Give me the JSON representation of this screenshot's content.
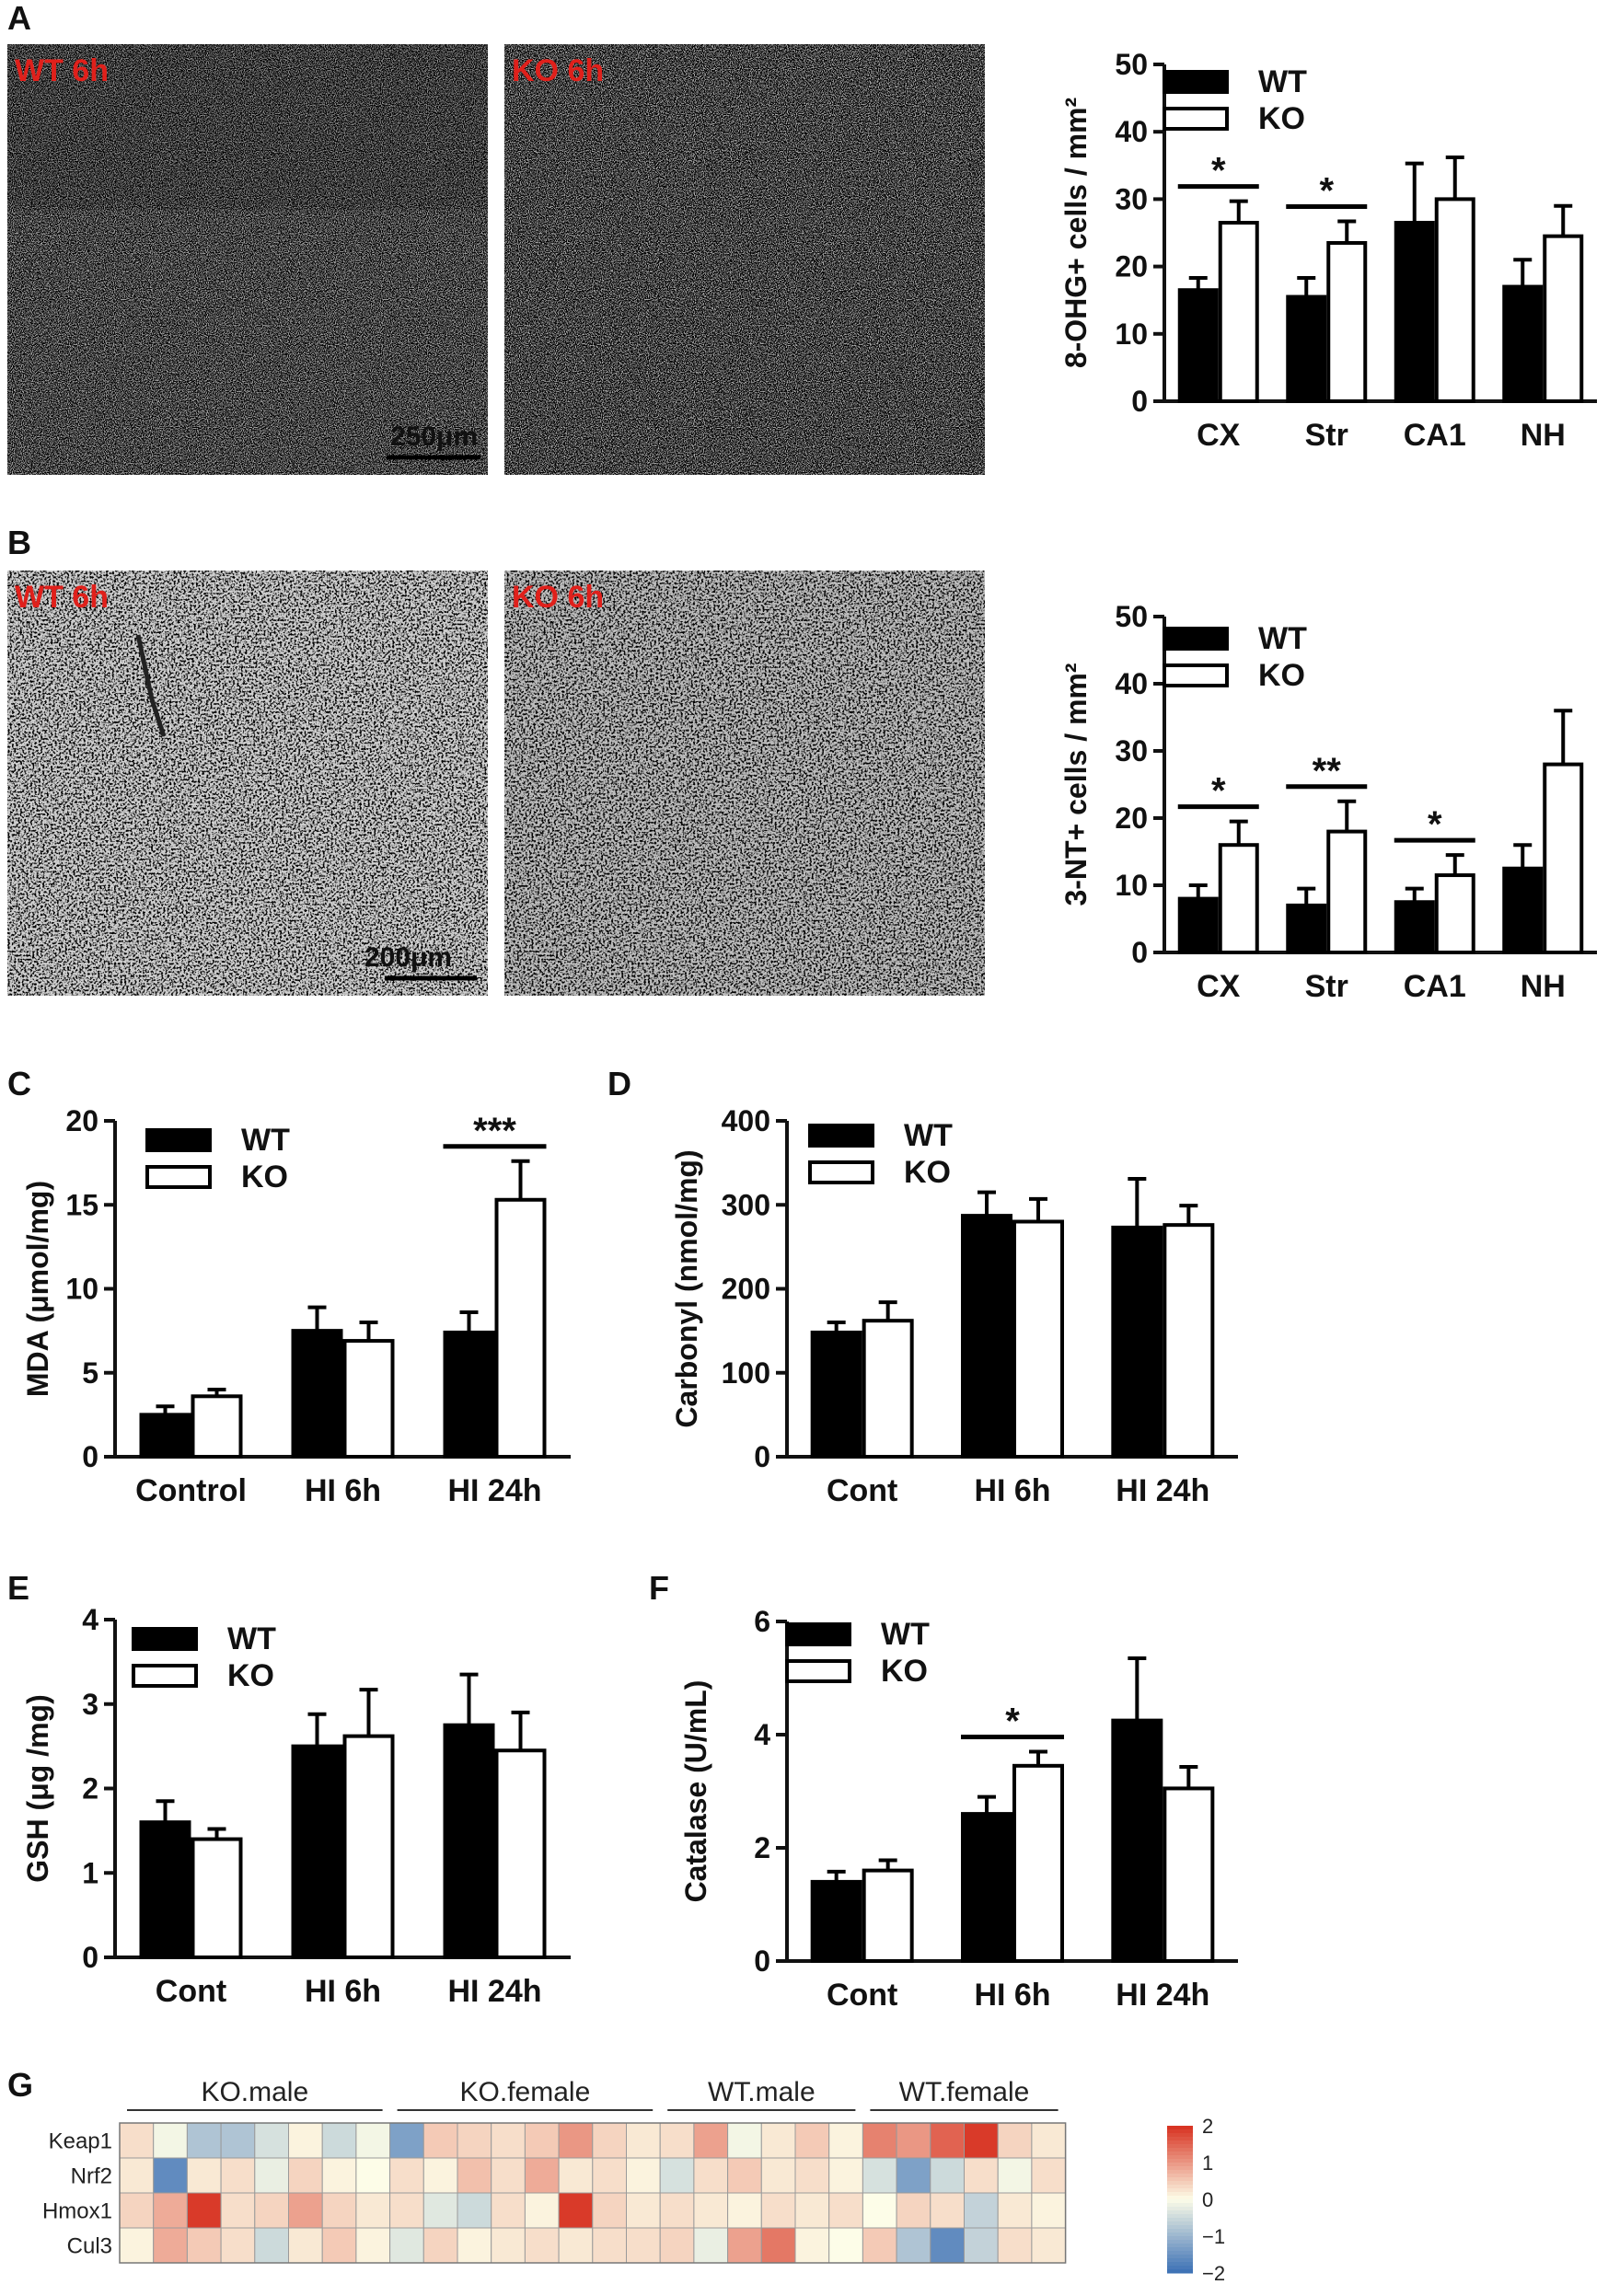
{
  "panels": {
    "A": {
      "letter": "A",
      "wt_img_label": "WT 6h",
      "ko_img_label": "KO 6h",
      "scale_label": "250μm"
    },
    "B": {
      "letter": "B",
      "wt_img_label": "WT 6h",
      "ko_img_label": "KO 6h",
      "scale_label": "200μm"
    },
    "C": {
      "letter": "C"
    },
    "D": {
      "letter": "D"
    },
    "E": {
      "letter": "E"
    },
    "F": {
      "letter": "F"
    },
    "G": {
      "letter": "G"
    }
  },
  "colors": {
    "wt": "#000000",
    "ko": "#ffffff",
    "axis": "#111111",
    "red_label": "#e0201b"
  },
  "chart_data": [
    {
      "id": "A",
      "type": "bar",
      "ylabel": "8-OHG+ cells / mm²",
      "categories": [
        "CX",
        "Str",
        "CA1",
        "NH"
      ],
      "ylim": [
        0,
        50
      ],
      "yticks": [
        0,
        10,
        20,
        30,
        40,
        50
      ],
      "series": [
        {
          "name": "WT",
          "values": [
            16.5,
            15.5,
            26.5,
            17
          ],
          "errors": [
            1.8,
            2.8,
            8.8,
            4
          ]
        },
        {
          "name": "KO",
          "values": [
            26.5,
            23.5,
            30,
            24.5
          ],
          "errors": [
            3.2,
            3.2,
            6.2,
            4.5
          ]
        }
      ],
      "significance": [
        {
          "category": 0,
          "label": "*"
        },
        {
          "category": 1,
          "label": "*"
        }
      ]
    },
    {
      "id": "B",
      "type": "bar",
      "ylabel": "3-NT+ cells / mm²",
      "categories": [
        "CX",
        "Str",
        "CA1",
        "NH"
      ],
      "ylim": [
        0,
        50
      ],
      "yticks": [
        0,
        10,
        20,
        30,
        40,
        50
      ],
      "series": [
        {
          "name": "WT",
          "values": [
            8,
            7,
            7.5,
            12.5
          ],
          "errors": [
            2,
            2.5,
            2,
            3.5
          ]
        },
        {
          "name": "KO",
          "values": [
            16,
            18,
            11.5,
            28
          ],
          "errors": [
            3.5,
            4.5,
            3,
            8
          ]
        }
      ],
      "significance": [
        {
          "category": 0,
          "label": "*"
        },
        {
          "category": 1,
          "label": "**"
        },
        {
          "category": 2,
          "label": "*"
        }
      ]
    },
    {
      "id": "C",
      "type": "bar",
      "ylabel": "MDA (μmol/mg)",
      "categories": [
        "Control",
        "HI 6h",
        "HI 24h"
      ],
      "ylim": [
        0,
        20
      ],
      "yticks": [
        0,
        5,
        10,
        15,
        20
      ],
      "series": [
        {
          "name": "WT",
          "values": [
            2.5,
            7.5,
            7.4
          ],
          "errors": [
            0.5,
            1.4,
            1.2
          ]
        },
        {
          "name": "KO",
          "values": [
            3.6,
            6.9,
            15.3
          ],
          "errors": [
            0.4,
            1.1,
            2.3
          ]
        }
      ],
      "significance": [
        {
          "category": 2,
          "label": "***"
        }
      ]
    },
    {
      "id": "D",
      "type": "bar",
      "ylabel": "Carbonyl (nmol/mg)",
      "categories": [
        "Cont",
        "HI 6h",
        "HI 24h"
      ],
      "ylim": [
        0,
        400
      ],
      "yticks": [
        0,
        100,
        200,
        300,
        400
      ],
      "series": [
        {
          "name": "WT",
          "values": [
            148,
            287,
            273
          ],
          "errors": [
            12,
            28,
            58
          ]
        },
        {
          "name": "KO",
          "values": [
            162,
            280,
            276
          ],
          "errors": [
            22,
            27,
            23
          ]
        }
      ],
      "significance": []
    },
    {
      "id": "E",
      "type": "bar",
      "ylabel": "GSH (μg /mg)",
      "categories": [
        "Cont",
        "HI 6h",
        "HI 24h"
      ],
      "ylim": [
        0,
        4
      ],
      "yticks": [
        0,
        1,
        2,
        3,
        4
      ],
      "series": [
        {
          "name": "WT",
          "values": [
            1.6,
            2.5,
            2.75
          ],
          "errors": [
            0.25,
            0.38,
            0.6
          ]
        },
        {
          "name": "KO",
          "values": [
            1.4,
            2.62,
            2.45
          ],
          "errors": [
            0.12,
            0.55,
            0.45
          ]
        }
      ],
      "significance": []
    },
    {
      "id": "F",
      "type": "bar",
      "ylabel": "Catalase (U/mL)",
      "categories": [
        "Cont",
        "HI 6h",
        "HI 24h"
      ],
      "ylim": [
        0,
        6
      ],
      "yticks": [
        0,
        2,
        4,
        6
      ],
      "series": [
        {
          "name": "WT",
          "values": [
            1.4,
            2.6,
            4.25
          ],
          "errors": [
            0.18,
            0.3,
            1.1
          ]
        },
        {
          "name": "KO",
          "values": [
            1.6,
            3.45,
            3.05
          ],
          "errors": [
            0.18,
            0.25,
            0.38
          ]
        }
      ],
      "significance": [
        {
          "category": 1,
          "label": "*"
        }
      ]
    },
    {
      "id": "G",
      "type": "heatmap",
      "rows": [
        "Keap1",
        "Nrf2",
        "Hmox1",
        "Cul3"
      ],
      "groups": [
        {
          "label": "KO.male",
          "count": 8
        },
        {
          "label": "KO.female",
          "count": 8
        },
        {
          "label": "WT.male",
          "count": 6
        },
        {
          "label": "WT.female",
          "count": 6
        }
      ],
      "values": [
        [
          0.3,
          -0.1,
          -0.8,
          -0.8,
          -0.4,
          0.1,
          -0.5,
          -0.1,
          -1.3,
          0.5,
          0.4,
          0.3,
          0.5,
          1.0,
          0.4,
          0.2,
          0.3,
          0.9,
          -0.1,
          0.2,
          0.5,
          0.1,
          1.2,
          1.0,
          1.5,
          1.9,
          0.4,
          0.2
        ],
        [
          0.2,
          -1.6,
          0.2,
          0.3,
          -0.2,
          0.4,
          0.1,
          0.0,
          0.3,
          0.1,
          0.6,
          0.3,
          0.8,
          0.2,
          0.3,
          0.1,
          -0.4,
          0.3,
          0.5,
          0.2,
          0.3,
          0.1,
          -0.4,
          -1.3,
          -0.5,
          0.3,
          -0.1,
          0.3
        ],
        [
          0.4,
          0.8,
          1.9,
          0.3,
          0.4,
          0.9,
          0.4,
          0.2,
          0.3,
          -0.3,
          -0.5,
          0.3,
          0.1,
          1.9,
          0.4,
          0.2,
          0.3,
          0.2,
          0.1,
          0.3,
          0.2,
          0.3,
          0.0,
          0.4,
          0.3,
          -0.6,
          0.2,
          0.1
        ],
        [
          0.1,
          0.8,
          0.5,
          0.3,
          -0.5,
          0.2,
          0.5,
          0.1,
          -0.3,
          0.4,
          0.1,
          0.2,
          0.3,
          0.2,
          0.3,
          0.3,
          0.4,
          -0.2,
          0.9,
          1.3,
          0.1,
          0.0,
          0.5,
          -0.8,
          -1.6,
          -0.6,
          0.3,
          0.2
        ]
      ],
      "colorbar": {
        "ticks": [
          2,
          1,
          0,
          -1,
          -2
        ],
        "tick_labels": [
          "2",
          "1",
          "0",
          "−1",
          "−2"
        ],
        "range": [
          -2,
          2
        ],
        "low_color": "#3a6fb5",
        "mid_color": "#fdfde8",
        "high_color": "#d7301f"
      }
    }
  ]
}
